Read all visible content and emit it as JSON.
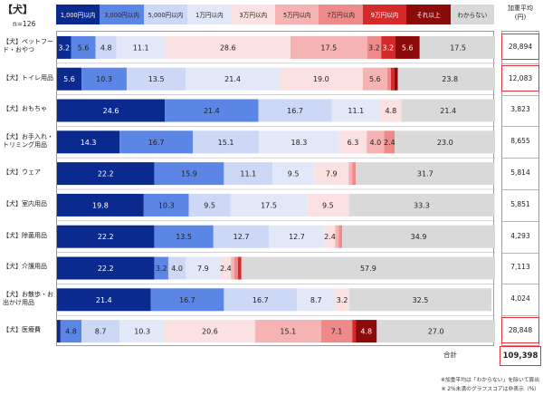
{
  "title": "【犬】",
  "n_label": "n=126",
  "avg_header": "加重平均\n(円)",
  "total": {
    "label": "合計",
    "value": "109,398"
  },
  "footnotes": [
    "※加重平均は「わからない」を除いて算出",
    "※ 2%未満のグラフスコアは非表示（%）"
  ],
  "colors": [
    "#0b2a8f",
    "#5b86e6",
    "#cdd7f6",
    "#e3e8f8",
    "#fbe1e1",
    "#f6b3b3",
    "#ee8a8a",
    "#d62a2a",
    "#8b0a0a",
    "#d9d9d9"
  ],
  "text_colors": [
    "#ffffff",
    "#222222",
    "#222222",
    "#222222",
    "#222222",
    "#222222",
    "#222222",
    "#ffffff",
    "#ffffff",
    "#222222"
  ],
  "chart_data": {
    "type": "bar",
    "stacked": true,
    "orientation": "horizontal",
    "xlim": [
      0,
      100
    ],
    "categories": [
      "【犬】ペットフード・おやつ",
      "【犬】トイレ用品",
      "【犬】おもちゃ",
      "【犬】お手入れ・トリミング用品",
      "【犬】ウェア",
      "【犬】室内用品",
      "【犬】除菌用品",
      "【犬】介護用品",
      "【犬】お散歩・お出かけ用品",
      "【犬】医療費"
    ],
    "averages": [
      "28,894",
      "12,083",
      "3,823",
      "8,655",
      "5,814",
      "5,851",
      "4,293",
      "7,113",
      "4,024",
      "28,848"
    ],
    "highlighted_avg_rows": [
      0,
      1,
      9
    ],
    "series": [
      {
        "name": "1,000円以内",
        "values": [
          3.2,
          5.6,
          24.6,
          14.3,
          22.2,
          19.8,
          22.2,
          22.2,
          21.4,
          0.8
        ]
      },
      {
        "name": "3,000円以内",
        "values": [
          5.6,
          10.3,
          21.4,
          16.7,
          15.9,
          10.3,
          13.5,
          3.2,
          16.7,
          4.8
        ]
      },
      {
        "name": "5,000円以内",
        "values": [
          4.8,
          13.5,
          16.7,
          15.1,
          11.1,
          9.5,
          12.7,
          4.0,
          16.7,
          8.7
        ]
      },
      {
        "name": "1万円以内",
        "values": [
          11.1,
          21.4,
          11.1,
          18.3,
          9.5,
          17.5,
          12.7,
          7.9,
          8.7,
          10.3
        ]
      },
      {
        "name": "3万円以内",
        "values": [
          28.6,
          19.0,
          4.8,
          6.3,
          7.9,
          9.5,
          2.4,
          2.4,
          3.2,
          20.6
        ]
      },
      {
        "name": "5万円以内",
        "values": [
          17.5,
          5.6,
          0,
          4.0,
          0.8,
          0,
          0.8,
          0.8,
          0,
          15.1
        ]
      },
      {
        "name": "7万円以内",
        "values": [
          3.2,
          0.8,
          0,
          2.4,
          0.8,
          0,
          0.8,
          0.8,
          0,
          7.1
        ]
      },
      {
        "name": "9万円以内",
        "values": [
          3.2,
          0.8,
          0,
          0,
          0,
          0,
          0,
          0.8,
          0,
          0.8
        ]
      },
      {
        "name": "それ以上",
        "values": [
          5.6,
          0.8,
          0,
          0,
          0,
          0,
          0,
          0,
          0,
          4.8
        ]
      },
      {
        "name": "わからない",
        "values": [
          17.5,
          23.8,
          21.4,
          23.0,
          31.7,
          33.3,
          34.9,
          57.9,
          32.5,
          27.0
        ]
      }
    ],
    "label_min": 2.0
  }
}
